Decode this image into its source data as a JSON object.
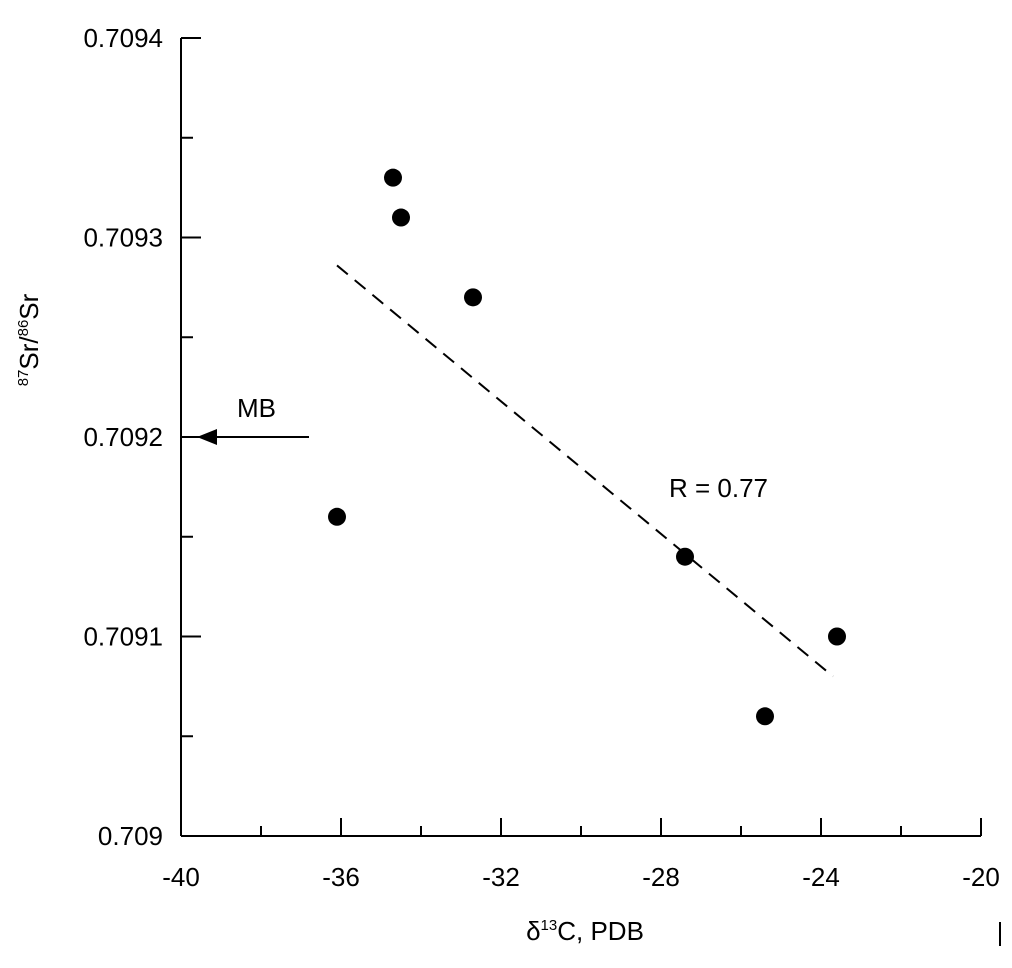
{
  "chart_data": {
    "type": "scatter",
    "xlabel": {
      "prefix": "δ",
      "sup": "13",
      "suffix": "C, PDB"
    },
    "ylabel": {
      "sup1": "87",
      "part1": "Sr/",
      "sup2": "86",
      "part2": "Sr"
    },
    "xlim": [
      -40,
      -20
    ],
    "ylim": [
      0.709,
      0.7094
    ],
    "x_ticks": [
      -40,
      -36,
      -32,
      -28,
      -24,
      -20
    ],
    "x_tick_labels": [
      "-40",
      "-36",
      "-32",
      "-28",
      "-24",
      "-20"
    ],
    "x_minor_ticks": [
      -38,
      -34,
      -30,
      -26,
      -22
    ],
    "y_ticks": [
      0.709,
      0.7091,
      0.7092,
      0.7093,
      0.7094
    ],
    "y_tick_labels": [
      "0.709",
      "0.7091",
      "0.7092",
      "0.7093",
      "0.7094"
    ],
    "y_minor_ticks": [
      0.70905,
      0.70915,
      0.70925,
      0.70935
    ],
    "points": [
      {
        "x": -34.7,
        "y": 0.70933
      },
      {
        "x": -34.5,
        "y": 0.70931
      },
      {
        "x": -32.7,
        "y": 0.70927
      },
      {
        "x": -36.1,
        "y": 0.70916
      },
      {
        "x": -27.4,
        "y": 0.70914
      },
      {
        "x": -23.6,
        "y": 0.7091
      },
      {
        "x": -25.4,
        "y": 0.70906
      }
    ],
    "trendline": {
      "x1": -36.1,
      "y1": 0.709286,
      "x2": -23.7,
      "y2": 0.70908,
      "style": "dashed"
    },
    "annotations": [
      {
        "text": "R = 0.77",
        "x": -27.8,
        "y": 0.70917
      },
      {
        "text": "MB",
        "x": -38.6,
        "y": 0.70921,
        "arrow": {
          "from_x": -36.8,
          "to_x": -39.6,
          "y": 0.7092
        }
      }
    ],
    "grid": false
  }
}
